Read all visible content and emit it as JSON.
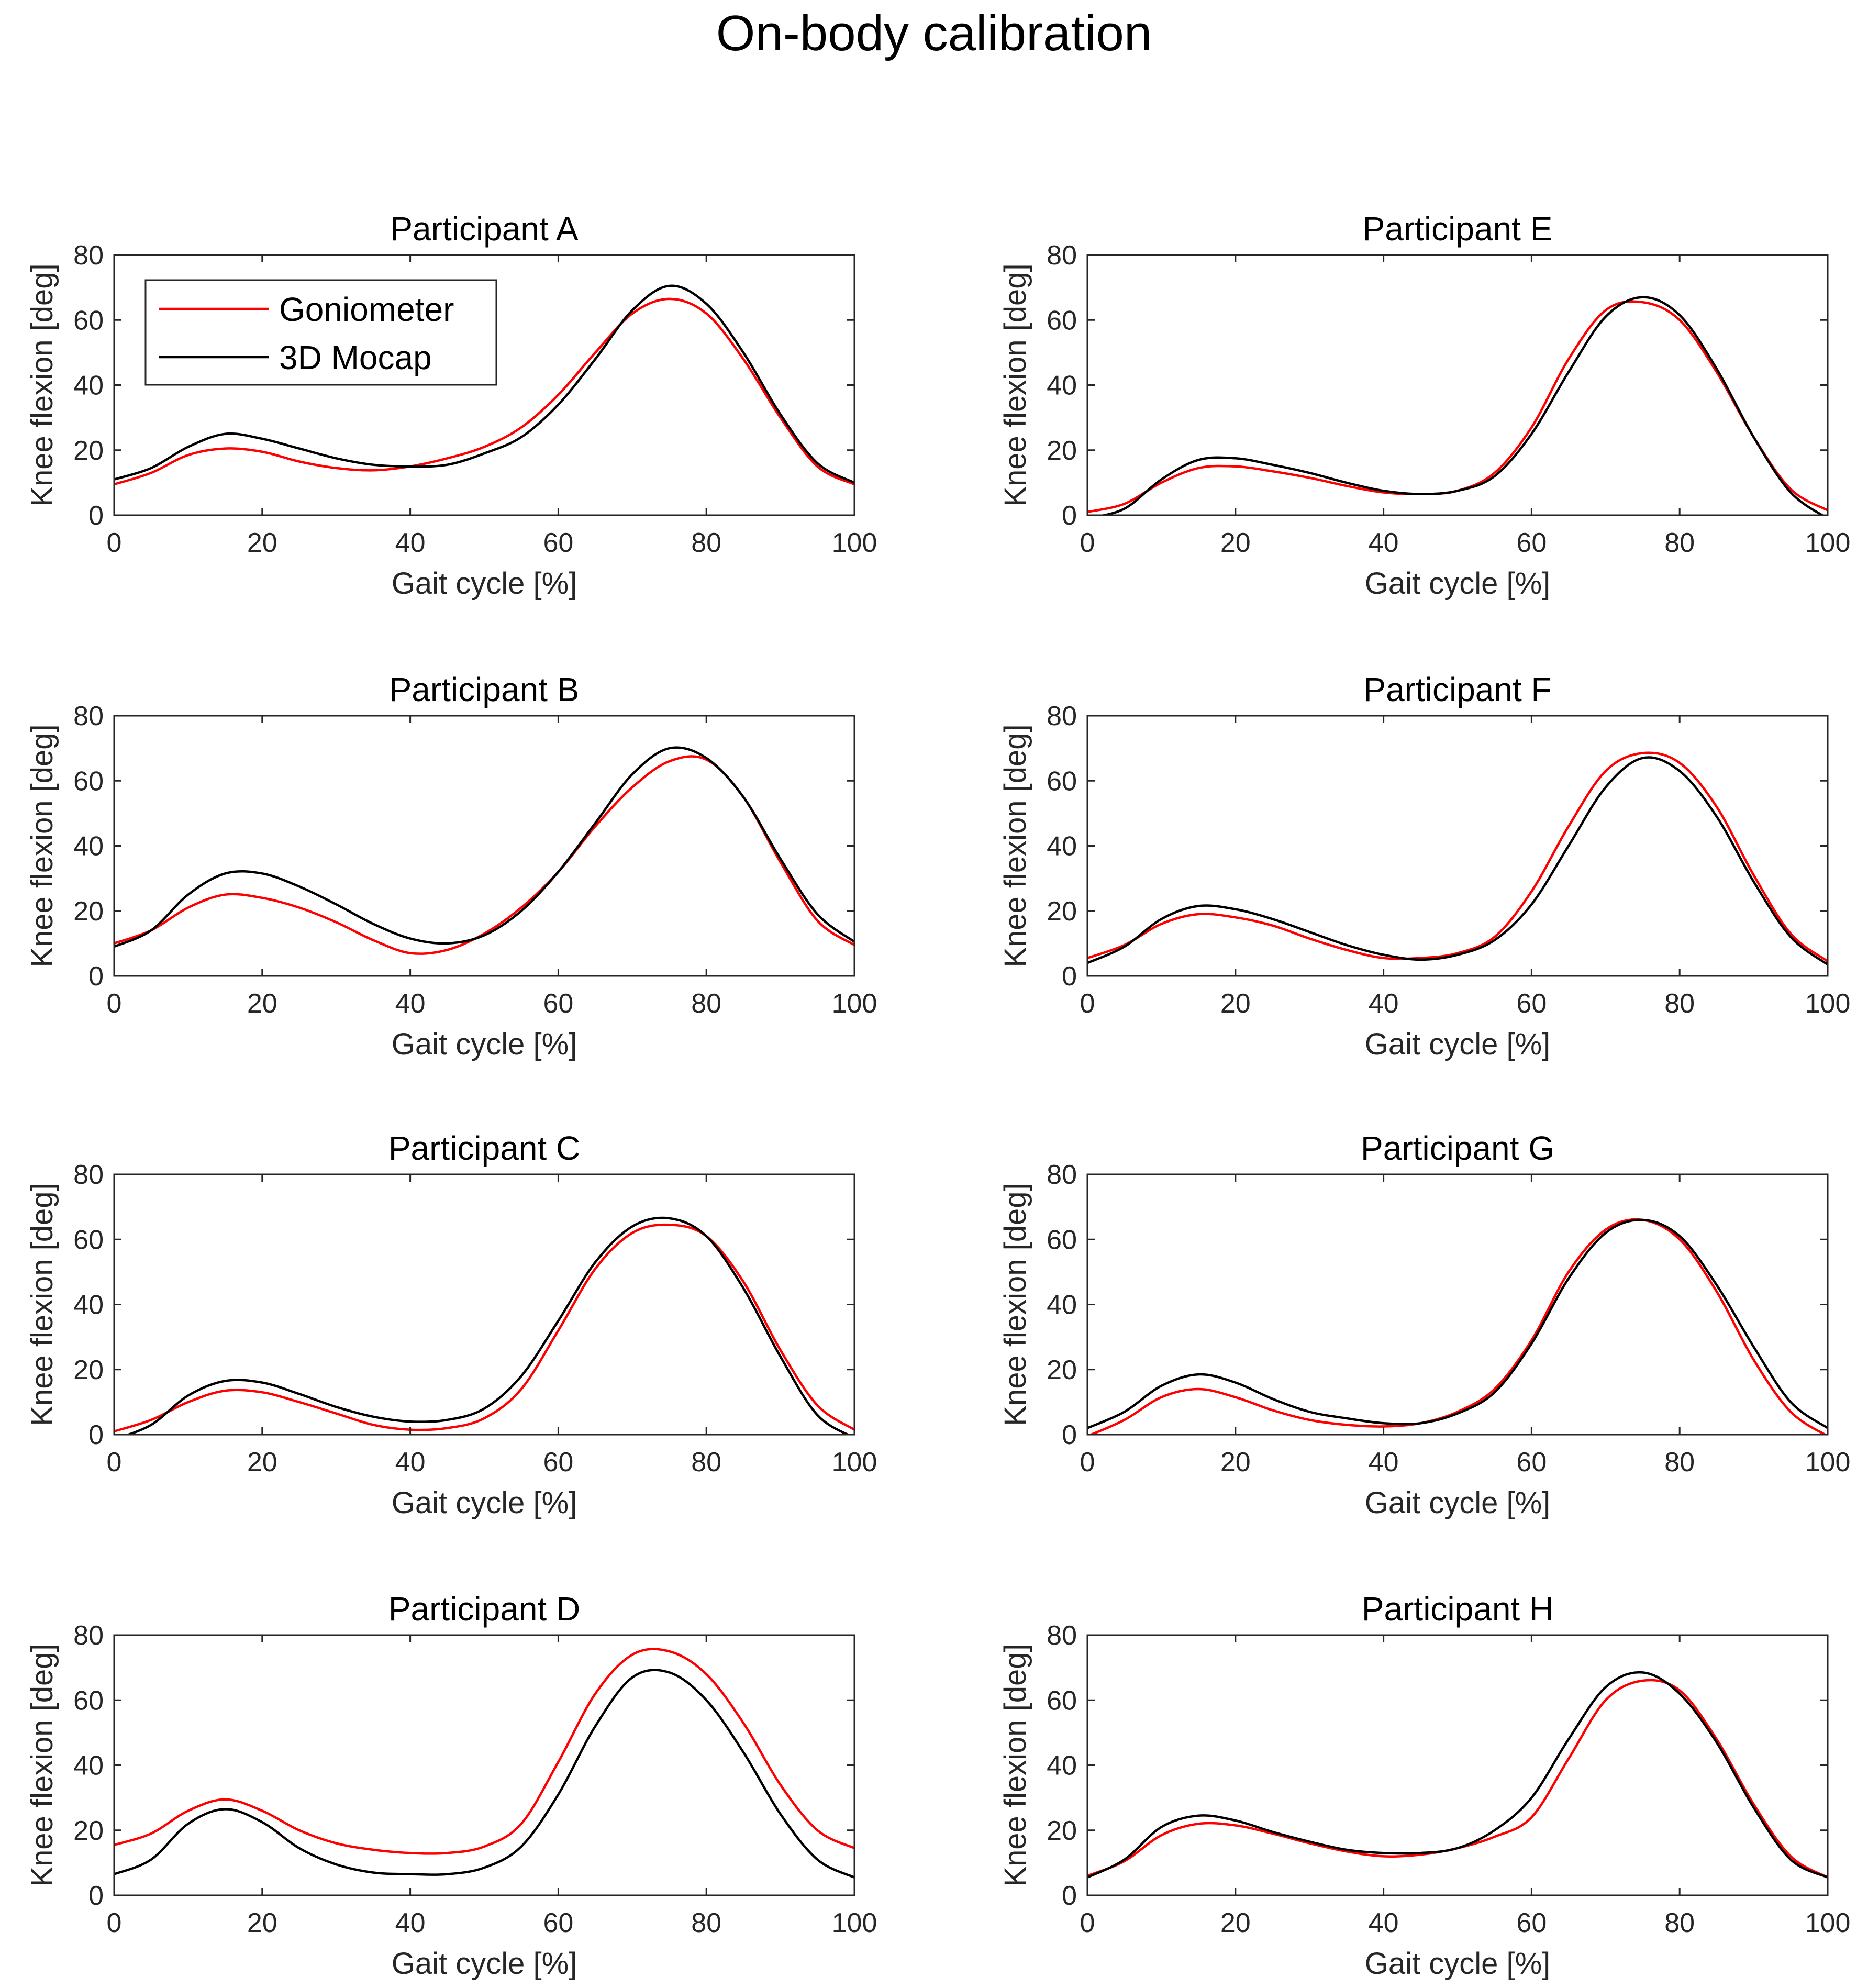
{
  "figure_title": "On-body calibration",
  "colors": {
    "goniometer": "#ff0000",
    "mocap": "#000000",
    "axis": "#262626"
  },
  "legend": {
    "placement": "top-left of Participant A",
    "items": [
      "Goniometer",
      "3D Mocap"
    ]
  },
  "chart_data": [
    {
      "type": "line",
      "title": "Participant A",
      "xlabel": "Gait cycle [%]",
      "ylabel": "Knee flexion [deg]",
      "xlim": [
        0,
        100
      ],
      "ylim": [
        0,
        80
      ],
      "xticks": [
        "0",
        "20",
        "40",
        "60",
        "80",
        "100"
      ],
      "yticks": [
        "0",
        "20",
        "40",
        "60",
        "80"
      ],
      "x": [
        0,
        5,
        10,
        15,
        20,
        25,
        30,
        35,
        40,
        45,
        50,
        55,
        60,
        65,
        70,
        75,
        80,
        85,
        90,
        95,
        100
      ],
      "series": [
        {
          "name": "Goniometer",
          "values": [
            9.5,
            13,
            18.5,
            20.5,
            19.5,
            16.5,
            14.5,
            13.8,
            15,
            17.5,
            21,
            27,
            37,
            50,
            62,
            66.5,
            62,
            48,
            30,
            15,
            9.5
          ]
        },
        {
          "name": "3D Mocap",
          "values": [
            11,
            14.5,
            21,
            25,
            23.5,
            20.5,
            17.5,
            15.5,
            15,
            15.5,
            19,
            24,
            34,
            48,
            63,
            70.5,
            65,
            50,
            31,
            16,
            10
          ]
        }
      ]
    },
    {
      "type": "line",
      "title": "Participant B",
      "xlabel": "Gait cycle [%]",
      "ylabel": "Knee flexion [deg]",
      "xlim": [
        0,
        100
      ],
      "ylim": [
        0,
        80
      ],
      "xticks": [
        "0",
        "20",
        "40",
        "60",
        "80",
        "100"
      ],
      "yticks": [
        "0",
        "20",
        "40",
        "60",
        "80"
      ],
      "x": [
        0,
        5,
        10,
        15,
        20,
        25,
        30,
        35,
        40,
        45,
        50,
        55,
        60,
        65,
        70,
        75,
        80,
        85,
        90,
        95,
        100
      ],
      "series": [
        {
          "name": "Goniometer",
          "values": [
            10,
            14,
            21,
            25,
            24,
            21,
            16.5,
            11,
            7,
            8,
            13,
            21,
            32,
            46,
            58,
            66,
            66.5,
            55,
            35,
            17,
            9.5
          ]
        },
        {
          "name": "3D Mocap",
          "values": [
            9,
            14,
            25,
            31.5,
            31.5,
            27.5,
            22,
            16,
            11.5,
            10,
            12.5,
            20,
            32,
            47,
            62,
            70,
            67,
            55,
            36,
            19,
            10.5
          ]
        }
      ]
    },
    {
      "type": "line",
      "title": "Participant C",
      "xlabel": "Gait cycle [%]",
      "ylabel": "Knee flexion [deg]",
      "xlim": [
        0,
        100
      ],
      "ylim": [
        0,
        80
      ],
      "xticks": [
        "0",
        "20",
        "40",
        "60",
        "80",
        "100"
      ],
      "yticks": [
        "0",
        "20",
        "40",
        "60",
        "80"
      ],
      "x": [
        0,
        5,
        10,
        15,
        20,
        25,
        30,
        35,
        40,
        45,
        50,
        55,
        60,
        65,
        70,
        75,
        80,
        85,
        90,
        95,
        100
      ],
      "series": [
        {
          "name": "Goniometer",
          "values": [
            1,
            4.5,
            10,
            13.5,
            13,
            10,
            6.5,
            3,
            1.5,
            2,
            5,
            14,
            32,
            51,
            62,
            64.5,
            61,
            47,
            26,
            9,
            1.5
          ]
        },
        {
          "name": "3D Mocap",
          "values": [
            -1.5,
            3,
            12,
            16.5,
            16,
            12.5,
            8.5,
            5.5,
            4,
            4.5,
            8,
            18,
            35,
            53,
            64,
            66.5,
            61,
            45,
            24,
            6,
            -1
          ]
        }
      ]
    },
    {
      "type": "line",
      "title": "Participant D",
      "xlabel": "Gait cycle [%]",
      "ylabel": "Knee flexion [deg]",
      "xlim": [
        0,
        100
      ],
      "ylim": [
        0,
        80
      ],
      "xticks": [
        "0",
        "20",
        "40",
        "60",
        "80",
        "100"
      ],
      "yticks": [
        "0",
        "20",
        "40",
        "60",
        "80"
      ],
      "x": [
        0,
        5,
        10,
        15,
        20,
        25,
        30,
        35,
        40,
        45,
        50,
        55,
        60,
        65,
        70,
        75,
        80,
        85,
        90,
        95,
        100
      ],
      "series": [
        {
          "name": "Goniometer",
          "values": [
            15.5,
            19,
            26,
            29.5,
            26,
            20,
            16,
            14,
            13,
            13,
            15,
            22,
            41,
            62,
            74,
            75,
            68,
            53,
            34,
            20,
            14.5
          ]
        },
        {
          "name": "3D Mocap",
          "values": [
            6.5,
            11,
            22,
            26.5,
            22.5,
            14.5,
            9.5,
            7,
            6.5,
            6.5,
            8.5,
            15,
            31,
            52,
            67,
            68.5,
            60,
            44,
            25,
            11,
            5.5
          ]
        }
      ]
    },
    {
      "type": "line",
      "title": "Participant E",
      "xlabel": "Gait cycle [%]",
      "ylabel": "Knee flexion [deg]",
      "xlim": [
        0,
        100
      ],
      "ylim": [
        0,
        80
      ],
      "xticks": [
        "0",
        "20",
        "40",
        "60",
        "80",
        "100"
      ],
      "yticks": [
        "0",
        "20",
        "40",
        "60",
        "80"
      ],
      "x": [
        0,
        5,
        10,
        15,
        20,
        25,
        30,
        35,
        40,
        45,
        50,
        55,
        60,
        65,
        70,
        75,
        80,
        85,
        90,
        95,
        100
      ],
      "series": [
        {
          "name": "Goniometer",
          "values": [
            1,
            3.5,
            10,
            14.5,
            15,
            13.5,
            11.5,
            9,
            7,
            6.5,
            7.5,
            13,
            27,
            48,
            63,
            65.5,
            60,
            44,
            24,
            8,
            1.5
          ]
        },
        {
          "name": "3D Mocap",
          "values": [
            -1,
            2,
            11,
            17,
            17.5,
            15.5,
            13,
            10,
            7.5,
            6.5,
            7.5,
            12,
            25,
            44,
            61,
            67,
            61.5,
            45,
            24,
            7,
            -1
          ]
        }
      ]
    },
    {
      "type": "line",
      "title": "Participant F",
      "xlabel": "Gait cycle [%]",
      "ylabel": "Knee flexion [deg]",
      "xlim": [
        0,
        100
      ],
      "ylim": [
        0,
        80
      ],
      "xticks": [
        "0",
        "20",
        "40",
        "60",
        "80",
        "100"
      ],
      "yticks": [
        "0",
        "20",
        "40",
        "60",
        "80"
      ],
      "x": [
        0,
        5,
        10,
        15,
        20,
        25,
        30,
        35,
        40,
        45,
        50,
        55,
        60,
        65,
        70,
        75,
        80,
        85,
        90,
        95,
        100
      ],
      "series": [
        {
          "name": "Goniometer",
          "values": [
            5.5,
            9.5,
            16,
            19,
            18,
            15.5,
            11.5,
            8,
            5.5,
            5.5,
            7,
            12,
            26,
            46,
            63,
            68.5,
            65.5,
            52,
            31,
            13,
            4.5
          ]
        },
        {
          "name": "3D Mocap",
          "values": [
            4,
            9,
            17.5,
            21.5,
            20.5,
            17.5,
            13.5,
            9.5,
            6.5,
            5,
            6.5,
            11,
            22,
            40,
            58,
            67,
            63,
            49,
            29,
            12,
            3.5
          ]
        }
      ]
    },
    {
      "type": "line",
      "title": "Participant G",
      "xlabel": "Gait cycle [%]",
      "ylabel": "Knee flexion [deg]",
      "xlim": [
        0,
        100
      ],
      "ylim": [
        0,
        80
      ],
      "xticks": [
        "0",
        "20",
        "40",
        "60",
        "80",
        "100"
      ],
      "yticks": [
        "0",
        "20",
        "40",
        "60",
        "80"
      ],
      "x": [
        0,
        5,
        10,
        15,
        20,
        25,
        30,
        35,
        40,
        45,
        50,
        55,
        60,
        65,
        70,
        75,
        80,
        85,
        90,
        95,
        100
      ],
      "series": [
        {
          "name": "Goniometer",
          "values": [
            -0.5,
            4.5,
            11.5,
            14,
            11.5,
            7.5,
            4.5,
            3,
            2.5,
            3.5,
            7,
            14,
            29,
            50,
            63,
            66,
            60,
            44,
            23,
            7,
            -0.5
          ]
        },
        {
          "name": "3D Mocap",
          "values": [
            2,
            7,
            15,
            18.5,
            16,
            11,
            7,
            5,
            3.5,
            3.5,
            6.5,
            13,
            28,
            48,
            62,
            66,
            61,
            46,
            27,
            10,
            2
          ]
        }
      ]
    },
    {
      "type": "line",
      "title": "Participant H",
      "xlabel": "Gait cycle [%]",
      "ylabel": "Knee flexion [deg]",
      "xlim": [
        0,
        100
      ],
      "ylim": [
        0,
        80
      ],
      "xticks": [
        "0",
        "20",
        "40",
        "60",
        "80",
        "100"
      ],
      "yticks": [
        "0",
        "20",
        "40",
        "60",
        "80"
      ],
      "x": [
        0,
        5,
        10,
        15,
        20,
        25,
        30,
        35,
        40,
        45,
        50,
        55,
        60,
        65,
        70,
        75,
        80,
        85,
        90,
        95,
        100
      ],
      "series": [
        {
          "name": "Goniometer",
          "values": [
            6,
            10.5,
            18.5,
            22,
            21.5,
            19,
            16,
            13.5,
            12,
            12.5,
            14.5,
            18,
            24,
            42,
            60,
            66,
            63,
            48,
            28,
            12,
            5.5
          ]
        },
        {
          "name": "3D Mocap",
          "values": [
            5.5,
            11,
            21,
            24.5,
            23,
            19.5,
            16.5,
            14,
            13,
            13,
            14.5,
            20,
            30,
            48,
            64,
            68.5,
            62,
            47,
            27,
            11,
            5.5
          ]
        }
      ]
    }
  ]
}
